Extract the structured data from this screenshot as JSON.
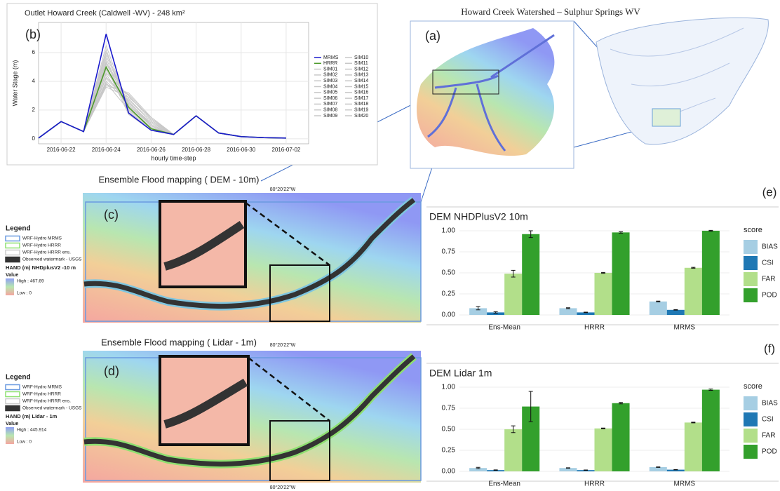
{
  "chart_data": [
    {
      "type": "line",
      "panel_label": "(b)",
      "title": "Outlet Howard Creek (Caldwell -WV) - 248  km²",
      "x_label": "hourly time-step",
      "y_label": "Water Stage (m)",
      "x": [
        "2016-06-21",
        "2016-06-22",
        "2016-06-23",
        "2016-06-24",
        "2016-06-25",
        "2016-06-26",
        "2016-06-27",
        "2016-06-28",
        "2016-06-29",
        "2016-06-30",
        "2016-07-01",
        "2016-07-02"
      ],
      "xlim": [
        "2016-06-21",
        "2016-07-03"
      ],
      "xticks": [
        "2016-06-22",
        "2016-06-24",
        "2016-06-26",
        "2016-06-28",
        "2016-06-30",
        "2016-07-02"
      ],
      "ylim": [
        -0.35,
        8.1
      ],
      "yticks": [
        0,
        2,
        4,
        6
      ],
      "grid": true,
      "series": [
        {
          "name": "MRMS",
          "color": "#1a1acc",
          "values": [
            0.05,
            1.2,
            0.5,
            7.3,
            1.8,
            0.6,
            0.3,
            1.6,
            0.4,
            0.15,
            0.08,
            0.05
          ]
        },
        {
          "name": "HRRR",
          "color": "#4d9a2a",
          "values": [
            0.05,
            1.2,
            0.5,
            5.0,
            2.2,
            0.7,
            0.3,
            1.6,
            0.4,
            0.15,
            0.08,
            0.05
          ]
        },
        {
          "name": "SIM01",
          "color": "#c8c8c8",
          "values": [
            0.05,
            1.2,
            0.5,
            4.2,
            2.6,
            0.9,
            0.3,
            1.6,
            0.4,
            0.15,
            0.08,
            0.05
          ]
        },
        {
          "name": "SIM02",
          "color": "#c8c8c8",
          "values": [
            0.05,
            1.2,
            0.5,
            5.6,
            2.0,
            0.8,
            0.3,
            1.6,
            0.4,
            0.15,
            0.08,
            0.05
          ]
        },
        {
          "name": "SIM03",
          "color": "#c8c8c8",
          "values": [
            0.05,
            1.2,
            0.5,
            3.8,
            3.1,
            1.4,
            0.3,
            1.6,
            0.4,
            0.15,
            0.08,
            0.05
          ]
        },
        {
          "name": "SIM04",
          "color": "#c8c8c8",
          "values": [
            0.05,
            1.2,
            0.5,
            6.2,
            1.9,
            0.7,
            0.3,
            1.6,
            0.4,
            0.15,
            0.08,
            0.05
          ]
        },
        {
          "name": "SIM05",
          "color": "#c8c8c8",
          "values": [
            0.05,
            1.2,
            0.5,
            4.8,
            2.4,
            1.0,
            0.3,
            1.6,
            0.4,
            0.15,
            0.08,
            0.05
          ]
        },
        {
          "name": "SIM06",
          "color": "#c8c8c8",
          "values": [
            0.05,
            1.2,
            0.5,
            5.3,
            2.8,
            1.2,
            0.3,
            1.6,
            0.4,
            0.15,
            0.08,
            0.05
          ]
        },
        {
          "name": "SIM07",
          "color": "#c8c8c8",
          "values": [
            0.05,
            1.2,
            0.5,
            4.5,
            2.2,
            0.8,
            0.3,
            1.6,
            0.4,
            0.15,
            0.08,
            0.05
          ]
        },
        {
          "name": "SIM08",
          "color": "#c8c8c8",
          "values": [
            0.05,
            1.2,
            0.5,
            6.5,
            2.1,
            0.7,
            0.3,
            1.6,
            0.4,
            0.15,
            0.08,
            0.05
          ]
        },
        {
          "name": "SIM09",
          "color": "#c8c8c8",
          "values": [
            0.05,
            1.2,
            0.5,
            3.6,
            2.9,
            1.5,
            0.3,
            1.6,
            0.4,
            0.15,
            0.08,
            0.05
          ]
        },
        {
          "name": "SIM10",
          "color": "#c8c8c8",
          "values": [
            0.05,
            1.2,
            0.5,
            5.0,
            1.7,
            0.6,
            0.3,
            1.6,
            0.4,
            0.15,
            0.08,
            0.05
          ]
        },
        {
          "name": "SIM11",
          "color": "#c8c8c8",
          "values": [
            0.05,
            1.2,
            0.5,
            4.0,
            2.5,
            1.1,
            0.3,
            1.6,
            0.4,
            0.15,
            0.08,
            0.05
          ]
        },
        {
          "name": "SIM12",
          "color": "#c8c8c8",
          "values": [
            0.05,
            1.2,
            0.5,
            5.8,
            2.3,
            0.9,
            0.3,
            1.6,
            0.4,
            0.15,
            0.08,
            0.05
          ]
        },
        {
          "name": "SIM13",
          "color": "#c8c8c8",
          "values": [
            0.05,
            1.2,
            0.5,
            4.6,
            3.0,
            1.3,
            0.3,
            1.6,
            0.4,
            0.15,
            0.08,
            0.05
          ]
        },
        {
          "name": "SIM14",
          "color": "#c8c8c8",
          "values": [
            0.05,
            1.2,
            0.5,
            3.9,
            2.0,
            0.8,
            0.3,
            1.6,
            0.4,
            0.15,
            0.08,
            0.05
          ]
        },
        {
          "name": "SIM15",
          "color": "#c8c8c8",
          "values": [
            0.05,
            1.2,
            0.5,
            5.4,
            1.8,
            0.6,
            0.3,
            1.6,
            0.4,
            0.15,
            0.08,
            0.05
          ]
        },
        {
          "name": "SIM16",
          "color": "#c8c8c8",
          "values": [
            0.05,
            1.2,
            0.5,
            4.3,
            2.7,
            1.2,
            0.3,
            1.6,
            0.4,
            0.15,
            0.08,
            0.05
          ]
        },
        {
          "name": "SIM17",
          "color": "#c8c8c8",
          "values": [
            0.05,
            1.2,
            0.5,
            6.0,
            2.4,
            0.9,
            0.3,
            1.6,
            0.4,
            0.15,
            0.08,
            0.05
          ]
        },
        {
          "name": "SIM18",
          "color": "#c8c8c8",
          "values": [
            0.05,
            1.2,
            0.5,
            4.9,
            2.1,
            0.7,
            0.3,
            1.6,
            0.4,
            0.15,
            0.08,
            0.05
          ]
        },
        {
          "name": "SIM19",
          "color": "#c8c8c8",
          "values": [
            0.05,
            1.2,
            0.5,
            3.7,
            3.2,
            1.5,
            0.3,
            1.6,
            0.4,
            0.15,
            0.08,
            0.05
          ]
        },
        {
          "name": "SIM20",
          "color": "#c8c8c8",
          "values": [
            0.05,
            1.2,
            0.5,
            5.2,
            2.6,
            1.0,
            0.3,
            1.6,
            0.4,
            0.15,
            0.08,
            0.05
          ]
        }
      ]
    },
    {
      "type": "bar",
      "panel_label": "(e)",
      "title": "DEM NHDPlusV2 10m",
      "legend_title": "score",
      "categories": [
        "Ens-Mean",
        "HRRR",
        "MRMS"
      ],
      "ylim": [
        -0.05,
        1.058
      ],
      "grid": true,
      "yticks": [
        {
          "value": 0,
          "label": "0.00"
        },
        {
          "value": 0.25,
          "label": "0.25"
        },
        {
          "value": 0.5,
          "label": "0.50"
        },
        {
          "value": 0.75,
          "label": "0.75"
        },
        {
          "value": 1,
          "label": "1.00"
        }
      ],
      "series": [
        {
          "name": "BIAS",
          "color": "#a6cee3",
          "values": [
            0.08,
            0.08,
            0.16
          ],
          "errors": [
            0.02,
            0.005,
            0.005
          ]
        },
        {
          "name": "CSI",
          "color": "#1f78b4",
          "values": [
            0.03,
            0.03,
            0.06
          ],
          "errors": [
            0.008,
            0.003,
            0.003
          ]
        },
        {
          "name": "FAR",
          "color": "#b2df8a",
          "values": [
            0.49,
            0.5,
            0.56
          ],
          "errors": [
            0.04,
            0.005,
            0.005
          ]
        },
        {
          "name": "POD",
          "color": "#33a02c",
          "values": [
            0.96,
            0.98,
            1.0
          ],
          "errors": [
            0.04,
            0.008,
            0.005
          ]
        }
      ]
    },
    {
      "type": "bar",
      "panel_label": "(f)",
      "title": "DEM Lidar 1m",
      "legend_title": "score",
      "categories": [
        "Ens-Mean",
        "HRRR",
        "MRMS"
      ],
      "ylim": [
        -0.05,
        1.058
      ],
      "grid": true,
      "yticks": [
        {
          "value": 0,
          "label": "0.00"
        },
        {
          "value": 0.25,
          "label": "0.25"
        },
        {
          "value": 0.5,
          "label": "0.50"
        },
        {
          "value": 0.75,
          "label": "0.75"
        },
        {
          "value": 1,
          "label": "1.00"
        }
      ],
      "series": [
        {
          "name": "BIAS",
          "color": "#a6cee3",
          "values": [
            0.04,
            0.04,
            0.05
          ],
          "errors": [
            0.008,
            0.003,
            0.003
          ]
        },
        {
          "name": "CSI",
          "color": "#1f78b4",
          "values": [
            0.015,
            0.015,
            0.02
          ],
          "errors": [
            0.003,
            0.002,
            0.002
          ]
        },
        {
          "name": "FAR",
          "color": "#b2df8a",
          "values": [
            0.5,
            0.51,
            0.58
          ],
          "errors": [
            0.04,
            0.004,
            0.004
          ]
        },
        {
          "name": "POD",
          "color": "#33a02c",
          "values": [
            0.77,
            0.81,
            0.97
          ],
          "errors": [
            0.18,
            0.008,
            0.008
          ]
        }
      ]
    }
  ],
  "maps": {
    "a": {
      "label": "(a)",
      "title": "Howard Creek Watershed – Sulphur Springs WV"
    },
    "c": {
      "label": "(c)",
      "title": "Ensemble Flood mapping ( DEM - 10m)",
      "coordinate": "80°20'22\"W",
      "legend": {
        "title": "Legend",
        "items": [
          "WRF-Hydro MRMS",
          "WRF-Hydro HRRR",
          "WRF-Hydro HRRR ens.",
          "Observed watermark - USGS"
        ],
        "hand_title": "HAND (m) NHDplusV2 -10 m",
        "value_title": "Value",
        "high": "High : 467.69",
        "low": "Low : 0"
      }
    },
    "d": {
      "label": "(d)",
      "title": "Ensemble Flood mapping ( Lidar - 1m)",
      "coordinate": "80°20'22\"W",
      "coordinate_bottom": "80°20'22\"W",
      "legend": {
        "title": "Legend",
        "items": [
          "WRF-Hydro MRMS",
          "WRF-Hydro HRRR",
          "WRF-Hydro HRRR ens.",
          "Observed watermark - USGS"
        ],
        "hand_title": "HAND (m) Lidar - 1m",
        "value_title": "Value",
        "high": "High : 445.914",
        "low": "Low : 0"
      }
    }
  }
}
